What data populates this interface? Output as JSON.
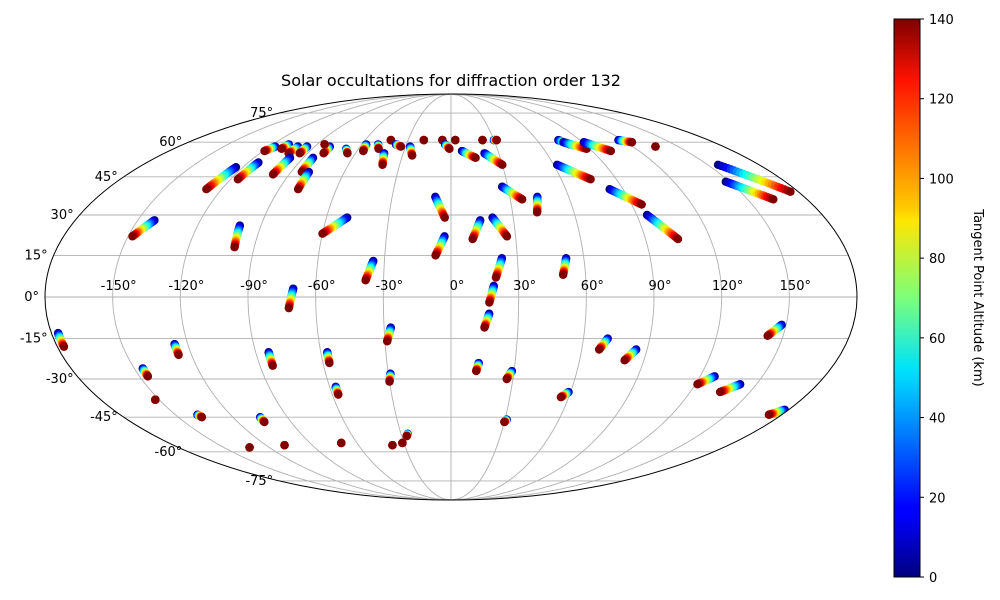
{
  "chart_data": {
    "type": "scatter",
    "projection": "mollweide",
    "title": "Solar occultations for diffraction order 132",
    "lon_ticks": [
      -150,
      -120,
      -90,
      -60,
      -30,
      0,
      30,
      60,
      90,
      120,
      150
    ],
    "lon_tick_labels": [
      "-150°",
      "-120°",
      "-90°",
      "-60°",
      "-30°",
      "0°",
      "30°",
      "60°",
      "90°",
      "120°",
      "150°"
    ],
    "lat_ticks": [
      75,
      60,
      45,
      30,
      15,
      0,
      -15,
      -30,
      -45,
      -60,
      -75
    ],
    "lat_tick_labels": [
      "75°",
      "60°",
      "45°",
      "30°",
      "15°",
      "0°",
      "-15°",
      "-30°",
      "-45°",
      "-60°",
      "-75°"
    ],
    "colorbar": {
      "label": "Tangent Point Altitude (km)",
      "range": [
        0,
        140
      ],
      "ticks": [
        0,
        20,
        40,
        60,
        80,
        100,
        120,
        140
      ],
      "tick_labels": [
        "0",
        "20",
        "40",
        "60",
        "80",
        "100",
        "120",
        "140"
      ],
      "colormap": "jet"
    },
    "tracks": [
      {
        "lon0": -142,
        "lat0": 28,
        "lon1": -148,
        "lat1": 22
      },
      {
        "lon0": -116,
        "lat0": 58,
        "lon1": -119,
        "lat1": 56
      },
      {
        "lon0": -109,
        "lat0": 59,
        "lon1": -110,
        "lat1": 57
      },
      {
        "lon0": -101,
        "lat0": 58,
        "lon1": -102,
        "lat1": 55
      },
      {
        "lon0": -95,
        "lat0": 58,
        "lon1": -95,
        "lat1": 55
      },
      {
        "lon0": -80,
        "lat0": 58,
        "lon1": -80,
        "lat1": 55
      },
      {
        "lon0": -85,
        "lat0": 59,
        "lon1": -85,
        "lat1": 59
      },
      {
        "lon0": -68,
        "lat0": 57,
        "lon1": -65,
        "lat1": 55
      },
      {
        "lon0": -57,
        "lat0": 59,
        "lon1": -56,
        "lat1": 56
      },
      {
        "lon0": -49,
        "lat0": 59,
        "lon1": -47,
        "lat1": 57
      },
      {
        "lon0": -42,
        "lat0": 61,
        "lon1": -42,
        "lat1": 61
      },
      {
        "lon0": -37,
        "lat0": 59,
        "lon1": -33,
        "lat1": 58
      },
      {
        "lon0": -27,
        "lat0": 58,
        "lon1": -24,
        "lat1": 54
      },
      {
        "lon0": -19,
        "lat0": 61,
        "lon1": -19,
        "lat1": 61
      },
      {
        "lon0": -6,
        "lat0": 61,
        "lon1": -6,
        "lat1": 61
      },
      {
        "lon0": 3,
        "lat0": 61,
        "lon1": 3,
        "lat1": 61
      },
      {
        "lon0": -4,
        "lat0": 59,
        "lon1": -1,
        "lat1": 57
      },
      {
        "lon0": 22,
        "lat0": 61,
        "lon1": 22,
        "lat1": 61
      },
      {
        "lon0": 30,
        "lat0": 61,
        "lon1": 32,
        "lat1": 61
      },
      {
        "lon0": 7,
        "lat0": 56,
        "lon1": 15,
        "lat1": 53
      },
      {
        "lon0": 21,
        "lat0": 55,
        "lon1": 30,
        "lat1": 50
      },
      {
        "lon0": 75,
        "lat0": 61,
        "lon1": 80,
        "lat1": 59
      },
      {
        "lon0": 77,
        "lat0": 60,
        "lon1": 88,
        "lat1": 57
      },
      {
        "lon0": 91,
        "lat0": 60,
        "lon1": 102,
        "lat1": 56
      },
      {
        "lon0": 117,
        "lat0": 61,
        "lon1": 124,
        "lat1": 60
      },
      {
        "lon0": 135,
        "lat0": 58,
        "lon1": 135,
        "lat1": 58
      },
      {
        "lon0": 156,
        "lat0": 50,
        "lon1": 176,
        "lat1": 39
      },
      {
        "lon0": 148,
        "lat0": 43,
        "lon1": 163,
        "lat1": 36
      },
      {
        "lon0": -124,
        "lat0": 49,
        "lon1": -128,
        "lat1": 40
      },
      {
        "lon0": -114,
        "lat0": 51,
        "lon1": -116,
        "lat1": 44
      },
      {
        "lon0": -98,
        "lat0": 53,
        "lon1": -99,
        "lat1": 46
      },
      {
        "lon0": -84,
        "lat0": 53,
        "lon1": -84,
        "lat1": 47
      },
      {
        "lon0": -80,
        "lat0": 47,
        "lon1": -80,
        "lat1": 40
      },
      {
        "lon0": -42,
        "lat0": 55,
        "lon1": -40,
        "lat1": 50
      },
      {
        "lon0": 62,
        "lat0": 50,
        "lon1": 76,
        "lat1": 44
      },
      {
        "lon0": 83,
        "lat0": 40,
        "lon1": 95,
        "lat1": 34
      },
      {
        "lon0": 95,
        "lat0": 30,
        "lon1": 105,
        "lat1": 21
      },
      {
        "lon0": 27,
        "lat0": 41,
        "lon1": 36,
        "lat1": 36
      },
      {
        "lon0": 44,
        "lat0": 37,
        "lon1": 42,
        "lat1": 31
      },
      {
        "lon0": -8,
        "lat0": 37,
        "lon1": -3,
        "lat1": 29
      },
      {
        "lon0": 20,
        "lat0": 29,
        "lon1": 26,
        "lat1": 22
      },
      {
        "lon0": 14,
        "lat0": 28,
        "lon1": 10,
        "lat1": 21
      },
      {
        "lon0": -3,
        "lat0": 22,
        "lon1": -7,
        "lat1": 15
      },
      {
        "lon0": -50,
        "lat0": 29,
        "lon1": -60,
        "lat1": 23
      },
      {
        "lon0": -100,
        "lat0": 26,
        "lon1": -99,
        "lat1": 18
      },
      {
        "lon0": -35,
        "lat0": 13,
        "lon1": -38,
        "lat1": 6
      },
      {
        "lon0": 23,
        "lat0": 14,
        "lon1": 20,
        "lat1": 7
      },
      {
        "lon0": 52,
        "lat0": 14,
        "lon1": 50,
        "lat1": 8
      },
      {
        "lon0": -70,
        "lat0": 3,
        "lon1": -72,
        "lat1": -4
      },
      {
        "lon0": 19,
        "lat0": 4,
        "lon1": 17,
        "lat1": -2
      },
      {
        "lon0": 17,
        "lat0": -6,
        "lon1": 15,
        "lat1": -11
      },
      {
        "lon0": -177,
        "lat0": -13,
        "lon1": -177,
        "lat1": -18
      },
      {
        "lon0": -126,
        "lat0": -17,
        "lon1": -126,
        "lat1": -21
      },
      {
        "lon0": -84,
        "lat0": -20,
        "lon1": -84,
        "lat1": -25
      },
      {
        "lon0": -57,
        "lat0": -20,
        "lon1": -57,
        "lat1": -24
      },
      {
        "lon0": -27,
        "lat0": -11,
        "lon1": -29,
        "lat1": -16
      },
      {
        "lon0": 71,
        "lat0": -15,
        "lon1": 68,
        "lat1": -19
      },
      {
        "lon0": 85,
        "lat0": -19,
        "lon1": 81,
        "lat1": -23
      },
      {
        "lon0": 148,
        "lat0": -10,
        "lon1": 143,
        "lat1": -14
      },
      {
        "lon0": -146,
        "lat0": -26,
        "lon1": -146,
        "lat1": -29
      },
      {
        "lon0": -29,
        "lat0": -28,
        "lon1": -30,
        "lat1": -31
      },
      {
        "lon0": 13,
        "lat0": -24,
        "lon1": 12,
        "lat1": -27
      },
      {
        "lon0": 29,
        "lat0": -27,
        "lon1": 27,
        "lat1": -30
      },
      {
        "lon0": 127,
        "lat0": -29,
        "lon1": 121,
        "lat1": -32
      },
      {
        "lon0": 142,
        "lat0": -32,
        "lon1": 135,
        "lat1": -35
      },
      {
        "lon0": -57,
        "lat0": -33,
        "lon1": -57,
        "lat1": -36
      },
      {
        "lon0": 59,
        "lat0": -35,
        "lon1": 56,
        "lat1": -37
      },
      {
        "lon0": -152,
        "lat0": -38,
        "lon1": -152,
        "lat1": -38
      },
      {
        "lon0": 178,
        "lat0": -42,
        "lon1": 173,
        "lat1": -44
      },
      {
        "lon0": -138,
        "lat0": -44,
        "lon1": -137,
        "lat1": -45
      },
      {
        "lon0": -105,
        "lat0": -45,
        "lon1": -105,
        "lat1": -47
      },
      {
        "lon0": 31,
        "lat0": -46,
        "lon1": 30,
        "lat1": -47
      },
      {
        "lon0": -26,
        "lat0": -52,
        "lon1": -27,
        "lat1": -53
      },
      {
        "lon0": -133,
        "lat0": -58,
        "lon1": -133,
        "lat1": -58
      },
      {
        "lon0": -108,
        "lat0": -57,
        "lon1": -108,
        "lat1": -57
      },
      {
        "lon0": -70,
        "lat0": -56,
        "lon1": -70,
        "lat1": -56
      },
      {
        "lon0": -38,
        "lat0": -57,
        "lon1": -38,
        "lat1": -57
      },
      {
        "lon0": -31,
        "lat0": -56,
        "lon1": -31,
        "lat1": -56
      }
    ]
  }
}
